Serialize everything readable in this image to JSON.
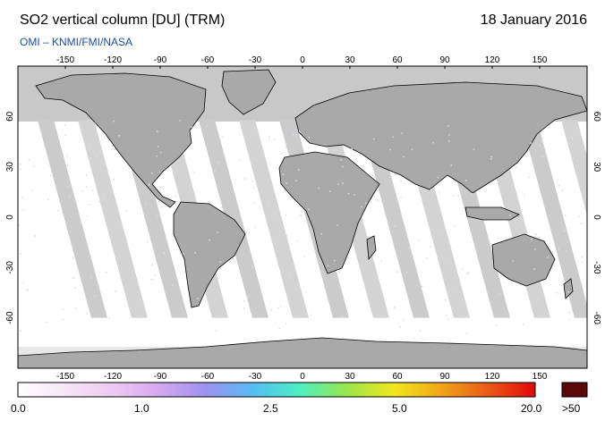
{
  "header": {
    "title": "SO2 vertical column [DU] (TRM)",
    "date": "18 January 2016",
    "subtitle": "OMI  –  KNMI/FMI/NASA"
  },
  "map": {
    "lon_range": [
      -180,
      180
    ],
    "lat_range": [
      -90,
      90
    ],
    "lon_ticks": [
      "-150",
      "-120",
      "-90",
      "-60",
      "-30",
      "0",
      "30",
      "60",
      "90",
      "120",
      "150"
    ],
    "lat_ticks": [
      "60",
      "30",
      "0",
      "-30",
      "-60"
    ],
    "no_data_color": "#c8c8c8",
    "swath_gap_color": "#d3d3d3"
  },
  "colorbar": {
    "labels": [
      "0.0",
      "1.0",
      "2.5",
      "5.0",
      "20.0",
      ">50"
    ],
    "colors": [
      "#ffffff",
      "#f6e6f6",
      "#eecaf2",
      "#d4a8f0",
      "#9c92ee",
      "#55bdf5",
      "#4cf0c0",
      "#9be64a",
      "#f1e71c",
      "#f0a418",
      "#ea5a16",
      "#e00a0a"
    ],
    "overflow_color": "#5a0808"
  }
}
